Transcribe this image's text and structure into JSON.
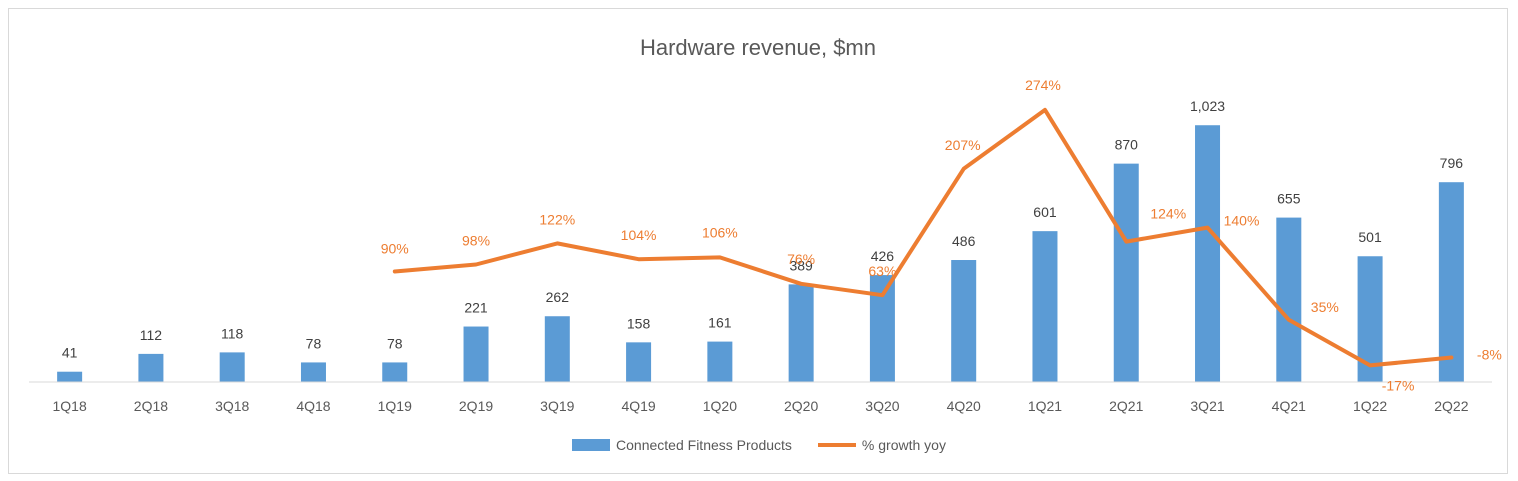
{
  "chart_data": {
    "type": "bar",
    "title": "Hardware revenue, $mn",
    "categories": [
      "1Q18",
      "2Q18",
      "3Q18",
      "4Q18",
      "1Q19",
      "2Q19",
      "3Q19",
      "4Q19",
      "1Q20",
      "2Q20",
      "3Q20",
      "4Q20",
      "1Q21",
      "2Q21",
      "3Q21",
      "4Q21",
      "1Q22",
      "2Q22"
    ],
    "series": [
      {
        "name": "Connected Fitness Products",
        "type": "bar",
        "color": "#5b9bd5",
        "values": [
          41,
          112,
          118,
          78,
          78,
          221,
          262,
          158,
          161,
          389,
          426,
          486,
          601,
          870,
          1023,
          655,
          501,
          796
        ],
        "labels": [
          "41",
          "112",
          "118",
          "78",
          "78",
          "221",
          "262",
          "158",
          "161",
          "389",
          "426",
          "486",
          "601",
          "870",
          "1,023",
          "655",
          "501",
          "796"
        ]
      },
      {
        "name": "% growth yoy",
        "type": "line",
        "color": "#ed7d31",
        "values": [
          null,
          null,
          null,
          null,
          90,
          98,
          122,
          104,
          106,
          76,
          63,
          207,
          274,
          124,
          140,
          35,
          -17,
          -8
        ],
        "labels": [
          null,
          null,
          null,
          null,
          "90%",
          "98%",
          "122%",
          "104%",
          "106%",
          "76%",
          "63%",
          "207%",
          "274%",
          "124%",
          "140%",
          "35%",
          "-17%",
          "-8%"
        ]
      }
    ],
    "legend_position": "bottom",
    "grid": false,
    "xlabel": "",
    "ylabel": ""
  },
  "legend": {
    "bar_label": "Connected Fitness Products",
    "line_label": "% growth yoy"
  }
}
